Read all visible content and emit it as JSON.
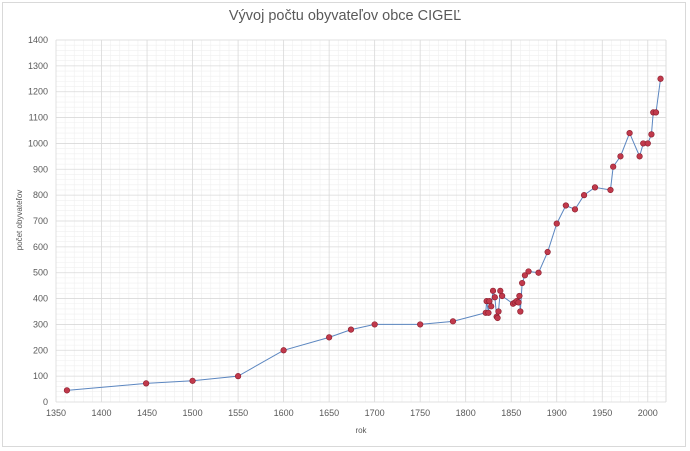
{
  "chart_data": {
    "type": "line",
    "title": "Vývoj počtu obyvateľov obce CIGEĽ",
    "xlabel": "rok",
    "ylabel": "počet obyvateľov",
    "xlim": [
      1350,
      2020
    ],
    "ylim": [
      0,
      1400
    ],
    "x_ticks": [
      1350,
      1400,
      1450,
      1500,
      1550,
      1600,
      1650,
      1700,
      1750,
      1800,
      1850,
      1900,
      1950,
      2000
    ],
    "y_ticks": [
      0,
      100,
      200,
      300,
      400,
      500,
      600,
      700,
      800,
      900,
      1000,
      1100,
      1200,
      1300,
      1400
    ],
    "grid": true,
    "line_color": "#5b86c0",
    "marker_color": "#c0394b",
    "marker_edge": "#8b1e2e",
    "series": [
      {
        "x": [
          1362,
          1449,
          1500,
          1550,
          1600,
          1650,
          1674,
          1700,
          1750,
          1786,
          1822,
          1823,
          1825,
          1826,
          1828,
          1830,
          1832,
          1834,
          1835,
          1836,
          1838,
          1840,
          1852,
          1854,
          1856,
          1858,
          1859,
          1860,
          1862,
          1865,
          1869,
          1880,
          1890,
          1900,
          1910,
          1920,
          1930,
          1942,
          1959,
          1962,
          1970,
          1980,
          1991,
          1995,
          2000,
          2004,
          2006,
          2009,
          2014
        ],
        "y": [
          45,
          72,
          82,
          100,
          200,
          250,
          280,
          300,
          300,
          312,
          345,
          390,
          345,
          390,
          370,
          430,
          405,
          330,
          325,
          350,
          430,
          410,
          380,
          385,
          390,
          385,
          410,
          350,
          460,
          490,
          505,
          500,
          580,
          690,
          760,
          745,
          800,
          830,
          820,
          910,
          950,
          1040,
          950,
          1000,
          1000,
          1035,
          1120,
          1120,
          1250
        ]
      }
    ]
  }
}
